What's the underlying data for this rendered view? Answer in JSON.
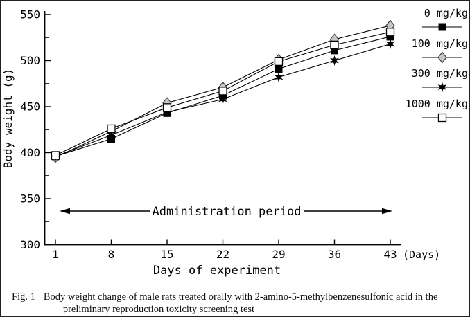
{
  "chart_data": {
    "type": "line",
    "title": "",
    "xlabel": "Days of experiment",
    "ylabel": "Body weight (g)",
    "x_unit_label": "(Days)",
    "x": [
      1,
      8,
      15,
      22,
      29,
      36,
      43
    ],
    "x_tick_labels": [
      "1",
      "8",
      "15",
      "22",
      "29",
      "36",
      "43"
    ],
    "xlim": [
      1,
      43
    ],
    "ylim": [
      300,
      550
    ],
    "y_ticks": [
      300,
      350,
      400,
      450,
      500,
      550
    ],
    "y_minor_ticks": [
      325,
      375,
      425,
      475,
      525
    ],
    "grid": false,
    "legend_position": "right",
    "annotation": "Administration period",
    "line_color": "#000000",
    "marker_colors": {
      "diamond_fill": "#c6c6c6",
      "diamond_stroke": "#3c3c3c"
    },
    "series": [
      {
        "name": "0 mg/kg",
        "marker": "filled-square",
        "values": [
          396,
          415,
          443,
          462,
          491,
          511,
          526
        ]
      },
      {
        "name": "100 mg/kg",
        "marker": "gray-diamond",
        "values": [
          395,
          423,
          454,
          471,
          501,
          523,
          538
        ]
      },
      {
        "name": "300 mg/kg",
        "marker": "star",
        "values": [
          396,
          419,
          444,
          458,
          482,
          500,
          518
        ]
      },
      {
        "name": "1000 mg/kg",
        "marker": "open-square",
        "values": [
          397,
          426,
          449,
          467,
          499,
          517,
          531
        ]
      }
    ]
  },
  "caption": {
    "label": "Fig. 1",
    "line1": "Body weight change of male rats treated orally with 2-amino-5-methylbenzenesulfonic acid in the",
    "line2": "preliminary reproduction toxicity screening test"
  }
}
